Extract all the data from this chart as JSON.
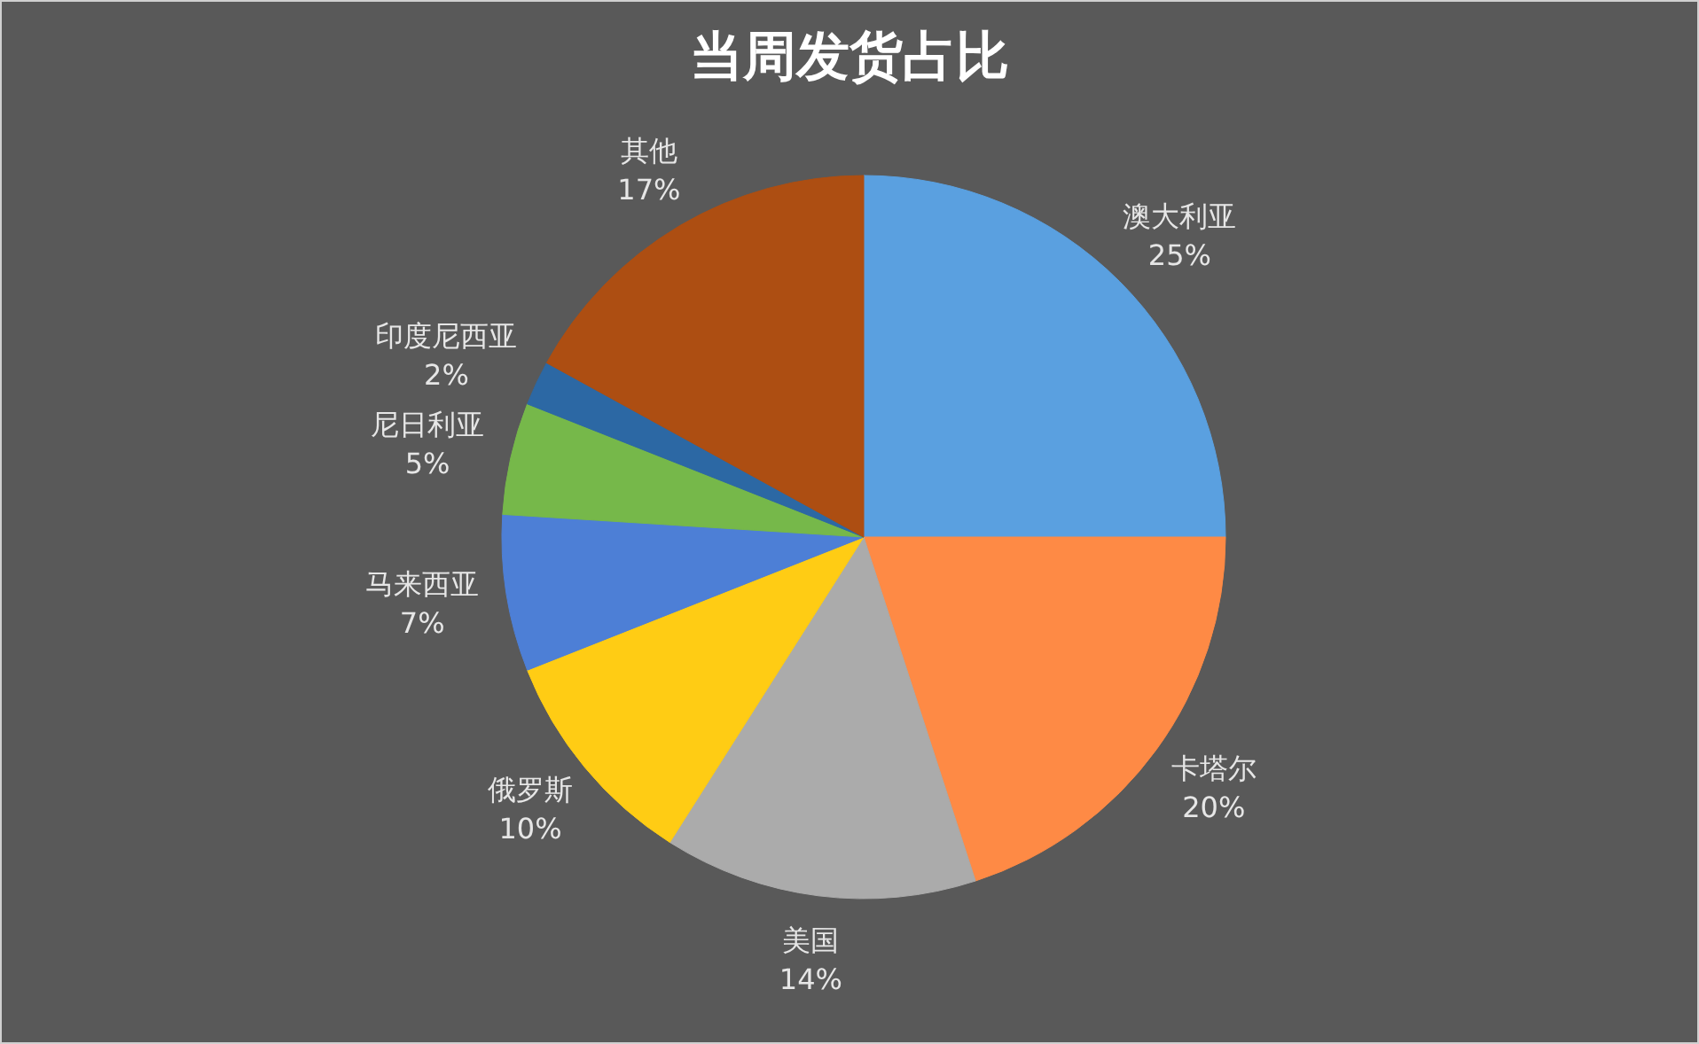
{
  "chart_data": {
    "type": "pie",
    "title": "当周发货占比",
    "categories": [
      "澳大利亚",
      "卡塔尔",
      "美国",
      "俄罗斯",
      "马来西亚",
      "尼日利亚",
      "印度尼西亚",
      "其他"
    ],
    "values": [
      25,
      20,
      14,
      10,
      7,
      5,
      2,
      17
    ],
    "colors": [
      "#5aa0e0",
      "#fe8a45",
      "#ababab",
      "#ffcc14",
      "#4d7fd6",
      "#76b84a",
      "#2c68a4",
      "#ad4e12"
    ],
    "value_labels": [
      "25%",
      "20%",
      "14%",
      "10%",
      "7%",
      "5%",
      "2%",
      "17%"
    ]
  }
}
